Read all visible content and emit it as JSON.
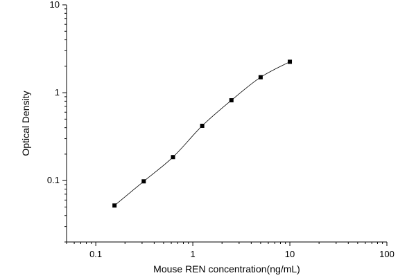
{
  "chart_data": {
    "type": "scatter",
    "title": "",
    "xlabel": "Mouse REN concentration(ng/mL)",
    "ylabel": "Optical Density",
    "x_scale": "log",
    "y_scale": "log",
    "xlim": [
      0.05,
      100
    ],
    "ylim": [
      0.02,
      10
    ],
    "x_ticks": [
      0.1,
      1,
      10,
      100
    ],
    "x_tick_labels": [
      "0.1",
      "1",
      "10",
      "100"
    ],
    "y_ticks": [
      0.1,
      1,
      10
    ],
    "y_tick_labels": [
      "0.1",
      "1",
      "10"
    ],
    "grid": false,
    "legend": "none",
    "series": [
      {
        "marker": "square",
        "fit_curve": true,
        "x": [
          0.156,
          0.312,
          0.625,
          1.25,
          2.5,
          5,
          10
        ],
        "y": [
          0.052,
          0.098,
          0.185,
          0.42,
          0.82,
          1.5,
          2.25
        ]
      }
    ],
    "colors": {
      "axis": "#000000",
      "marker": "#000000",
      "curve": "#000000"
    }
  }
}
